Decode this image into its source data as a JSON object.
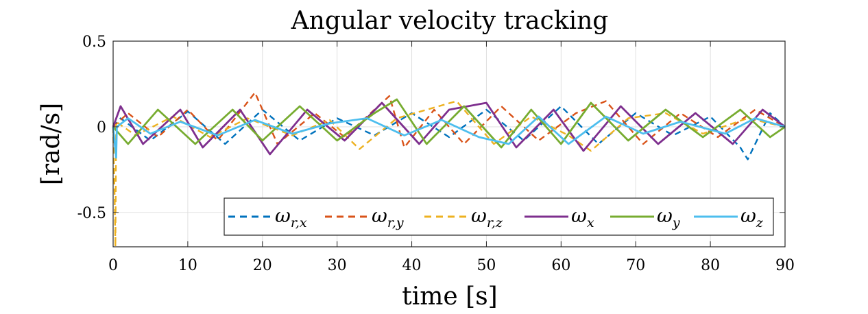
{
  "chart_data": {
    "type": "line",
    "title": "Angular velocity tracking",
    "xlabel": "time [s]",
    "ylabel": "[rad/s]",
    "xlim": [
      0,
      90
    ],
    "ylim": [
      -0.7,
      0.5
    ],
    "xticks": [
      0,
      10,
      20,
      30,
      40,
      50,
      60,
      70,
      80,
      90
    ],
    "xtick_labels": [
      "0",
      "10",
      "20",
      "30",
      "40",
      "50",
      "60",
      "70",
      "80",
      "90"
    ],
    "yticks": [
      -0.5,
      0,
      0.5
    ],
    "ytick_labels": [
      "-0.5",
      "0",
      "0.5"
    ],
    "grid": true,
    "legend_position": "bottom-right",
    "series": [
      {
        "name": "ω_{r,x}",
        "base": "ω",
        "sub": "r,x",
        "color": "#0072BD",
        "dash": "dashed",
        "x": [
          0,
          1,
          5,
          10,
          15,
          20,
          25,
          30,
          35,
          40,
          45,
          50,
          55,
          60,
          65,
          70,
          75,
          80,
          84,
          85,
          88,
          90
        ],
        "y": [
          0.0,
          0.05,
          -0.08,
          0.09,
          -0.1,
          0.1,
          -0.08,
          0.05,
          -0.05,
          0.08,
          -0.06,
          0.1,
          -0.08,
          0.12,
          -0.1,
          0.08,
          -0.05,
          0.06,
          -0.12,
          -0.19,
          0.08,
          0.0
        ]
      },
      {
        "name": "ω_{r,y}",
        "base": "ω",
        "sub": "r,y",
        "color": "#D95319",
        "dash": "dashed",
        "x": [
          0,
          2,
          6,
          10,
          14,
          19,
          22,
          27,
          31,
          37,
          39,
          43,
          47,
          52,
          57,
          62,
          66,
          71,
          76,
          81,
          86,
          90
        ],
        "y": [
          0.0,
          0.08,
          -0.06,
          0.1,
          -0.08,
          0.2,
          -0.1,
          0.08,
          -0.06,
          0.18,
          -0.12,
          0.1,
          -0.1,
          0.12,
          -0.08,
          0.08,
          0.15,
          -0.1,
          0.08,
          -0.06,
          0.1,
          0.0
        ]
      },
      {
        "name": "ω_{r,z}",
        "base": "ω",
        "sub": "r,z",
        "color": "#EDB120",
        "dash": "dashed",
        "x": [
          0,
          0.2,
          0.3,
          0.4,
          3,
          8,
          13,
          18,
          24,
          29,
          33,
          38,
          46,
          51,
          56,
          61,
          64,
          69,
          74,
          79,
          85,
          90
        ],
        "y": [
          0.0,
          -0.4,
          -0.7,
          0.03,
          -0.05,
          0.06,
          -0.06,
          0.05,
          -0.05,
          0.04,
          -0.13,
          0.05,
          0.15,
          -0.1,
          0.06,
          -0.05,
          -0.14,
          0.05,
          0.08,
          -0.04,
          0.05,
          0.0
        ]
      },
      {
        "name": "ω_x",
        "base": "ω",
        "sub": "x",
        "color": "#7E2F8E",
        "dash": "solid",
        "x": [
          0,
          1,
          4,
          9,
          12,
          17,
          21,
          26,
          31,
          36,
          41,
          45,
          50,
          54,
          59,
          63,
          68,
          73,
          78,
          83,
          87,
          90
        ],
        "y": [
          0.0,
          0.12,
          -0.1,
          0.1,
          -0.12,
          0.1,
          -0.16,
          0.1,
          -0.08,
          0.14,
          -0.1,
          0.1,
          0.14,
          -0.12,
          0.1,
          -0.14,
          0.12,
          -0.1,
          0.08,
          -0.1,
          0.1,
          0.0
        ]
      },
      {
        "name": "ω_y",
        "base": "ω",
        "sub": "y",
        "color": "#77AC30",
        "dash": "solid",
        "x": [
          0,
          2,
          6,
          11,
          16,
          20,
          25,
          30,
          35,
          38,
          42,
          47,
          52,
          56,
          60,
          64,
          69,
          74,
          79,
          84,
          88,
          90
        ],
        "y": [
          0.0,
          -0.1,
          0.1,
          -0.1,
          0.1,
          -0.08,
          0.12,
          -0.08,
          0.08,
          0.16,
          -0.1,
          0.12,
          -0.12,
          0.1,
          -0.1,
          0.14,
          -0.08,
          0.1,
          -0.06,
          0.1,
          -0.06,
          0.0
        ]
      },
      {
        "name": "ω_z",
        "base": "ω",
        "sub": "z",
        "color": "#4DBEEE",
        "dash": "solid",
        "x": [
          0,
          0.4,
          0.5,
          2,
          5,
          9,
          14,
          19,
          24,
          29,
          34,
          39,
          44,
          49,
          53,
          57,
          61,
          66,
          71,
          76,
          82,
          86,
          90
        ],
        "y": [
          0.0,
          -0.18,
          0.0,
          0.05,
          -0.04,
          0.03,
          -0.05,
          0.04,
          -0.04,
          0.02,
          0.05,
          -0.05,
          0.04,
          -0.06,
          -0.1,
          0.06,
          -0.1,
          0.06,
          -0.04,
          0.03,
          -0.04,
          0.05,
          0.0
        ]
      }
    ]
  }
}
